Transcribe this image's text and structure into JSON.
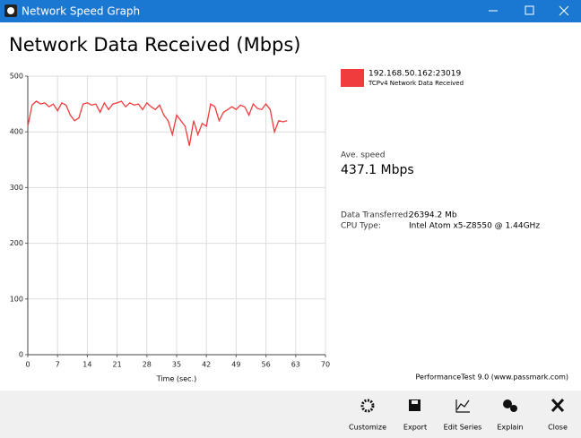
{
  "window": {
    "title": "Network Speed Graph"
  },
  "chart_data": {
    "type": "line",
    "title": "Network Data Received (Mbps)",
    "x_label": "Time (sec.)",
    "x": [
      0,
      1,
      2,
      3,
      4,
      5,
      6,
      7,
      8,
      9,
      10,
      11,
      12,
      13,
      14,
      15,
      16,
      17,
      18,
      19,
      20,
      21,
      22,
      23,
      24,
      25,
      26,
      27,
      28,
      29,
      30,
      31,
      32,
      33,
      34,
      35,
      36,
      37,
      38,
      39,
      40,
      41,
      42,
      43,
      44,
      45,
      46,
      47,
      48,
      49,
      50,
      51,
      52,
      53,
      54,
      55,
      56,
      57,
      58,
      59,
      60,
      61
    ],
    "series": [
      {
        "name": "192.168.50.162:23019",
        "color": "#f03c3c",
        "values": [
          410,
          448,
          455,
          450,
          452,
          445,
          450,
          438,
          452,
          448,
          430,
          420,
          425,
          450,
          452,
          448,
          450,
          435,
          452,
          440,
          450,
          452,
          455,
          445,
          452,
          448,
          450,
          440,
          452,
          445,
          440,
          448,
          430,
          420,
          395,
          430,
          420,
          410,
          375,
          420,
          395,
          415,
          410,
          450,
          445,
          420,
          435,
          440,
          445,
          440,
          448,
          445,
          430,
          450,
          442,
          440,
          450,
          440,
          400,
          420,
          418,
          420
        ]
      }
    ],
    "series_description": "TCPv4 Network Data Received",
    "xlim": [
      0,
      70
    ],
    "xticks": [
      0,
      7,
      14,
      21,
      28,
      35,
      42,
      49,
      56,
      63,
      70
    ],
    "ylim": [
      0,
      500
    ],
    "yticks": [
      0,
      100,
      200,
      300,
      400,
      500
    ],
    "grid": true
  },
  "stats": {
    "ave_label": "Ave. speed",
    "ave_value": "437.1 Mbps",
    "rows": [
      [
        "Data Transferred:",
        "26394.2 Mb"
      ],
      [
        "CPU Type:",
        "Intel Atom x5-Z8550 @ 1.44GHz"
      ]
    ],
    "footer": "PerformanceTest 9.0 (www.passmark.com)"
  },
  "toolbar": {
    "buttons": [
      "Customize",
      "Export",
      "Edit Series",
      "Explain",
      "Close"
    ]
  }
}
